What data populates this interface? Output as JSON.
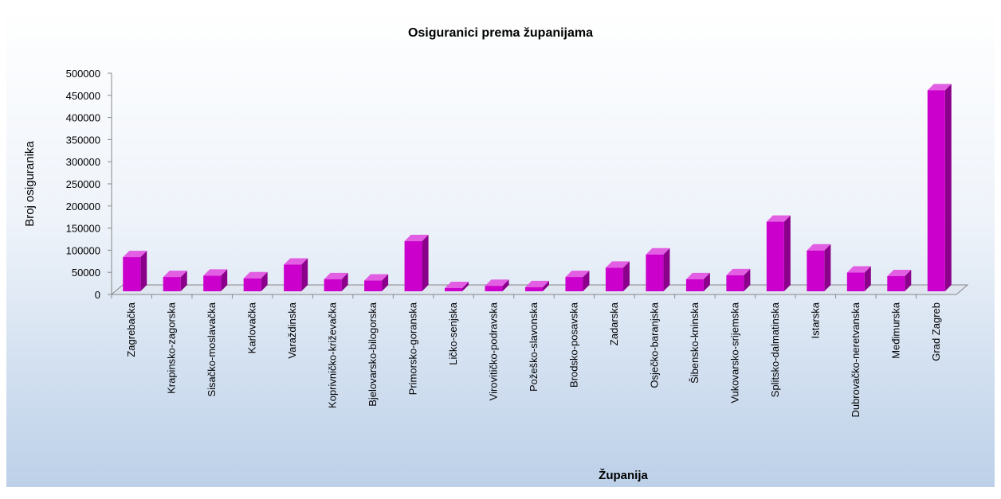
{
  "chart_data": {
    "type": "bar3d",
    "title": "Osiguranici prema županijama",
    "x_label": "Županija",
    "y_label": "Broj osiguranika",
    "categories": [
      "Zagrebačka",
      "Krapinsko-zagorska",
      "Sisačko-moslavačka",
      "Karlovačka",
      "Varaždinska",
      "Koprivničko-križevačka",
      "Bjelovarsko-bilogorska",
      "Primorsko-goranska",
      "Ličko-senjska",
      "Virovitičko-podravska",
      "Požeško-slavonska",
      "Brodsko-posavska",
      "Zadarska",
      "Osječko-baranjska",
      "Šibensko-kninska",
      "Vukovarsko-srijemska",
      "Splitsko-dalmatinska",
      "Istarska",
      "Dubrovačko-neretvanska",
      "Međimurska",
      "Grad Zagreb"
    ],
    "values": [
      88000,
      43000,
      46000,
      40000,
      71000,
      38000,
      35000,
      124000,
      18000,
      23000,
      20000,
      43000,
      64000,
      94000,
      38000,
      47000,
      168000,
      103000,
      53000,
      45000,
      465000
    ],
    "color": "#cc00cc",
    "ylim": [
      0,
      500000
    ],
    "yticks": [
      0,
      50000,
      100000,
      150000,
      200000,
      250000,
      300000,
      350000,
      400000,
      450000,
      500000
    ]
  }
}
